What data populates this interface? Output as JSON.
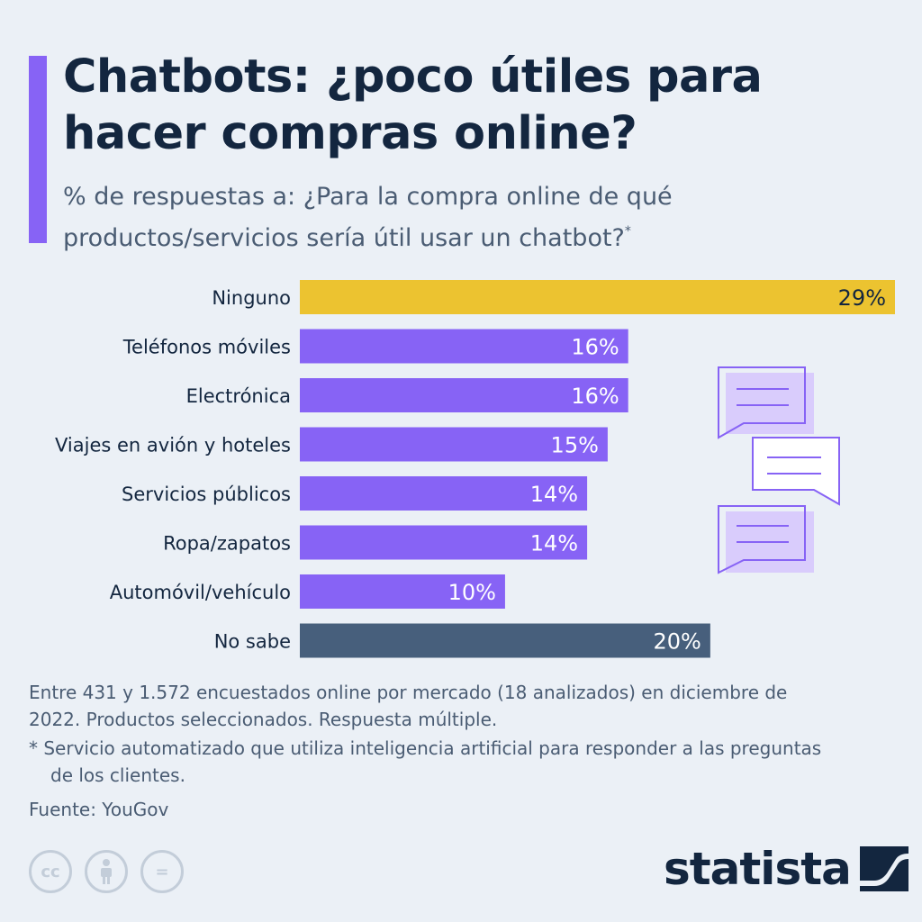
{
  "header": {
    "title": "Chatbots: ¿poco útiles para hacer compras online?",
    "subtitle": "% de respuestas a: ¿Para la compra online de qué productos/servicios sería útil usar un chatbot?",
    "subtitle_mark": "*"
  },
  "colors": {
    "accent": "#8763f5",
    "highlight": "#ecc330",
    "dark": "#475f7c",
    "text": "#13263f"
  },
  "chart_data": {
    "type": "bar",
    "orientation": "horizontal",
    "categories": [
      "Ninguno",
      "Teléfonos móviles",
      "Electrónica",
      "Viajes en avión y hoteles",
      "Servicios públicos",
      "Ropa/zapatos",
      "Automóvil/vehículo",
      "No sabe"
    ],
    "values": [
      29,
      16,
      16,
      15,
      14,
      14,
      10,
      20
    ],
    "value_labels": [
      "29%",
      "16%",
      "16%",
      "15%",
      "14%",
      "14%",
      "10%",
      "20%"
    ],
    "bar_colors": [
      "#ecc330",
      "#8763f5",
      "#8763f5",
      "#8763f5",
      "#8763f5",
      "#8763f5",
      "#8763f5",
      "#475f7c"
    ],
    "xlim": [
      0,
      29
    ],
    "grid": false,
    "legend": "none"
  },
  "footnote": {
    "note1": "Entre 431 y 1.572 encuestados online por mercado (18 analizados) en diciembre de 2022. Productos seleccionados. Respuesta múltiple.",
    "note2": "* Servicio automatizado que utiliza inteligencia artificial para responder a las preguntas de los clientes.",
    "source": "Fuente: YouGov"
  },
  "license": {
    "cc": "cc",
    "equals": "="
  },
  "brand": {
    "name": "statista"
  },
  "icons": [
    "chat-bubble-icon",
    "creative-commons-icon",
    "attribution-icon",
    "no-derivatives-icon",
    "statista-logo-icon"
  ]
}
